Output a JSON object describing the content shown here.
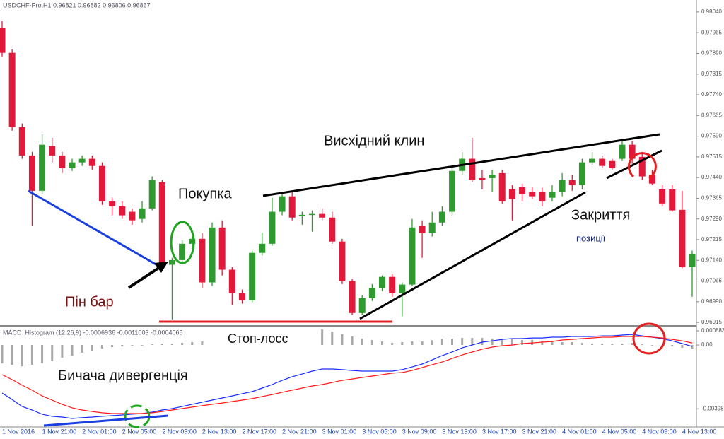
{
  "chart_data": [
    {
      "type": "candlestick",
      "title": "USDCHF-Pro,H1 0.96821 0.96882 0.96806 0.96867",
      "categories": [
        "1 Nov 2016",
        null,
        null,
        null,
        "1 Nov 21:00",
        null,
        null,
        null,
        "2 Nov 01:00",
        null,
        null,
        null,
        "2 Nov 05:00",
        null,
        null,
        null,
        "2 Nov 09:00",
        null,
        null,
        null,
        "2 Nov 13:00",
        null,
        null,
        null,
        "2 Nov 17:00",
        null,
        null,
        null,
        "2 Nov 21:00",
        null,
        null,
        null,
        "3 Nov 01:00",
        null,
        null,
        null,
        "3 Nov 05:00",
        null,
        null,
        null,
        "3 Nov 09:00",
        null,
        null,
        null,
        "3 Nov 13:00",
        null,
        null,
        null,
        "3 Nov 17:00",
        null,
        null,
        null,
        "3 Nov 21:00",
        null,
        null,
        null,
        "4 Nov 01:00",
        null,
        null,
        null,
        "4 Nov 05:00",
        null,
        null,
        null,
        "4 Nov 09:00",
        null,
        null,
        null,
        "4 Nov 13:00",
        null
      ],
      "open": [
        0.97981,
        0.97892,
        0.97623,
        0.9752,
        0.97392,
        0.97554,
        0.9752,
        0.97474,
        0.97495,
        0.97508,
        0.97482,
        0.97354,
        0.97336,
        0.97316,
        0.9729,
        0.97328,
        0.97423,
        0.97124,
        0.97141,
        0.972,
        0.97218,
        0.9706,
        0.97259,
        0.97106,
        0.97021,
        0.96996,
        0.97167,
        0.972,
        0.97316,
        0.97372,
        0.973,
        0.97305,
        0.97308,
        0.97295,
        0.97208,
        0.97065,
        0.96949,
        0.97003,
        0.97039,
        0.9708,
        0.97021,
        0.97052,
        0.97264,
        0.97239,
        0.97277,
        0.97316,
        0.97464,
        0.97508,
        0.97438,
        0.97438,
        0.97456,
        0.97397,
        0.97405,
        0.97387,
        0.97387,
        0.97367,
        0.97387,
        0.97431,
        0.97413,
        0.97495,
        0.97508,
        0.975,
        0.97508,
        0.97559,
        0.97515,
        0.97449,
        0.97397,
        0.97397,
        0.97323,
        0.97116
      ],
      "high": [
        0.98007,
        0.97904,
        0.97636,
        0.97533,
        0.97597,
        0.97584,
        0.97533,
        0.97508,
        0.9752,
        0.9752,
        0.97495,
        0.97367,
        0.97354,
        0.97328,
        0.97354,
        0.97444,
        0.97431,
        0.97149,
        0.97213,
        0.97226,
        0.97239,
        0.97277,
        0.97285,
        0.97116,
        0.97034,
        0.97175,
        0.97239,
        0.97367,
        0.9738,
        0.97387,
        0.97316,
        0.97321,
        0.97328,
        0.97316,
        0.97218,
        0.97072,
        0.97013,
        0.97054,
        0.97085,
        0.9709,
        0.9706,
        0.9729,
        0.97285,
        0.97316,
        0.97336,
        0.97477,
        0.97533,
        0.97584,
        0.97469,
        0.97469,
        0.97469,
        0.97413,
        0.97418,
        0.97405,
        0.97403,
        0.97413,
        0.97456,
        0.97449,
        0.97508,
        0.97533,
        0.9752,
        0.97508,
        0.97572,
        0.97572,
        0.97533,
        0.97469,
        0.97413,
        0.97413,
        0.97392,
        0.97175
      ],
      "low": [
        0.97879,
        0.9761,
        0.97508,
        0.97264,
        0.9738,
        0.97495,
        0.97456,
        0.97464,
        0.97482,
        0.97469,
        0.97341,
        0.97303,
        0.9729,
        0.97269,
        0.97277,
        0.97321,
        0.97111,
        0.96926,
        0.97131,
        0.97188,
        0.97039,
        0.97047,
        0.97085,
        0.96978,
        0.96983,
        0.96988,
        0.97157,
        0.97193,
        0.97303,
        0.97285,
        0.97269,
        0.97244,
        0.97285,
        0.972,
        0.97054,
        0.96942,
        0.96942,
        0.96993,
        0.97029,
        0.97008,
        0.96937,
        0.97047,
        0.97149,
        0.97226,
        0.97264,
        0.97303,
        0.97449,
        0.97423,
        0.97397,
        0.97387,
        0.97346,
        0.97285,
        0.97354,
        0.97362,
        0.97336,
        0.97354,
        0.97372,
        0.97392,
        0.97397,
        0.97487,
        0.97474,
        0.97469,
        0.975,
        0.9749,
        0.97431,
        0.97413,
        0.97336,
        0.97316,
        0.97111,
        0.97008
      ],
      "close": [
        0.97892,
        0.97623,
        0.9752,
        0.97392,
        0.97559,
        0.9752,
        0.97474,
        0.97495,
        0.97508,
        0.97482,
        0.97354,
        0.97336,
        0.97303,
        0.97285,
        0.97328,
        0.97431,
        0.97124,
        0.97141,
        0.972,
        0.97218,
        0.9706,
        0.97259,
        0.97106,
        0.97021,
        0.96996,
        0.97167,
        0.972,
        0.97316,
        0.97372,
        0.97295,
        0.97305,
        0.97308,
        0.97295,
        0.97208,
        0.97065,
        0.96949,
        0.97003,
        0.97039,
        0.9708,
        0.97021,
        0.97052,
        0.97259,
        0.97239,
        0.97277,
        0.97316,
        0.97464,
        0.97508,
        0.97431,
        0.97431,
        0.97449,
        0.97354,
        0.97362,
        0.9738,
        0.97372,
        0.97354,
        0.97387,
        0.97431,
        0.97413,
        0.97495,
        0.97508,
        0.97482,
        0.97474,
        0.97559,
        0.97508,
        0.97444,
        0.97418,
        0.97346,
        0.97321,
        0.97116,
        0.97162
      ],
      "up_color": "#2f9a2f",
      "down_color": "#e2193a",
      "ylim": [
        0.96905,
        0.9805
      ],
      "yticks": [
        {
          "value": 0.9804,
          "label": "0.98040"
        },
        0.97965,
        {
          "value": 0.9789,
          "label": "0.97890"
        },
        0.97815,
        {
          "value": 0.9774,
          "label": "0.97740"
        },
        0.97665,
        {
          "value": 0.9759,
          "label": "0.97590"
        },
        0.97515,
        {
          "value": 0.9744,
          "label": "0.97440"
        },
        0.97365,
        {
          "value": 0.9729,
          "label": "0.97290"
        },
        0.97215,
        {
          "value": 0.9714,
          "label": "0.97140"
        },
        0.97065,
        {
          "value": 0.9699,
          "label": "0.96990"
        },
        0.96915
      ],
      "annotations": [
        "Висхідний клин",
        "Покупка",
        "Пін бар",
        "Закриття",
        "позиції",
        "Стоп-лосс",
        "Бичача дивергенція"
      ]
    },
    {
      "type": "macd",
      "title": "MACD_Histogram (12,26,9) -0.0006936 -0.0011003 -0.0004066",
      "ylim": [
        -0.00503,
        0.00115
      ],
      "yticks": [
        0.000883,
        {
          "value": 0,
          "label": "0.00"
        },
        -0.003983
      ],
      "series": [
        {
          "style": "histogram",
          "color": "#a8a8a8",
          "values": [
            -0.00115,
            -0.00124,
            -0.00133,
            -0.00124,
            -0.00114,
            -0.00101,
            -0.0008,
            -0.00067,
            -0.00048,
            -0.00035,
            -0.00022,
            -0.00013,
            -9e-05,
            -4e-05,
            0,
            4e-05,
            9e-05,
            9e-05,
            0.00013,
            0.00018,
            0.00022,
            0.00026,
            0.00031,
            0.00035,
            0.0004,
            0.00044,
            0.00053,
            0.00062,
            0.00074,
            0.00084,
            0.00088,
            0.00093,
            0.00097,
            0.00084,
            0.00067,
            0.00053,
            0.0004,
            0.00031,
            0.00022,
            0.00013,
            0.00018,
            0.00022,
            0.00022,
            0.0003,
            0.0004,
            0.0004,
            0.00044,
            0.00044,
            0.00044,
            0.00039,
            0.00039,
            0.0004,
            0.00031,
            0.00031,
            0.00026,
            0.00027,
            0.00018,
            0.00018,
            0.00013,
            9e-05,
            8e-05,
            8e-05,
            9e-05,
            0.00013,
            4e-05,
            0,
            -4e-05,
            -9e-05,
            -0.00017,
            -0.00022
          ]
        },
        {
          "style": "line",
          "color": "#1a2cff",
          "values": [
            -0.003,
            -0.0034,
            -0.00384,
            -0.00406,
            -0.00432,
            -0.00445,
            -0.0045,
            -0.00459,
            -0.00454,
            -0.0045,
            -0.00445,
            -0.00441,
            -0.00437,
            -0.00432,
            -0.00428,
            -0.00419,
            -0.00406,
            -0.00397,
            -0.00384,
            -0.0037,
            -0.00357,
            -0.00344,
            -0.00331,
            -0.00318,
            -0.00304,
            -0.00291,
            -0.00269,
            -0.00247,
            -0.00221,
            -0.00198,
            -0.00181,
            -0.00163,
            -0.0015,
            -0.0015,
            -0.00154,
            -0.00159,
            -0.00163,
            -0.00163,
            -0.00163,
            -0.00163,
            -0.00154,
            -0.00137,
            -0.00119,
            -0.00093,
            -0.00066,
            -0.00044,
            -0.00018,
            0,
            0.00018,
            0.00026,
            0.00035,
            0.0004,
            0.0004,
            0.00044,
            0.00044,
            0.00049,
            0.00049,
            0.00053,
            0.00053,
            0.00053,
            0.00057,
            0.00057,
            0.00062,
            0.00066,
            0.00057,
            0.00049,
            0.0004,
            0.00026,
            9e-05,
            -9e-05
          ]
        },
        {
          "style": "line",
          "color": "#ff1a1a",
          "values": [
            -0.00185,
            -0.00216,
            -0.00251,
            -0.00282,
            -0.00318,
            -0.00344,
            -0.0037,
            -0.00392,
            -0.00406,
            -0.00415,
            -0.00423,
            -0.00428,
            -0.00428,
            -0.00428,
            -0.00428,
            -0.00423,
            -0.00415,
            -0.00406,
            -0.00397,
            -0.00388,
            -0.00379,
            -0.0037,
            -0.00362,
            -0.00353,
            -0.00344,
            -0.00335,
            -0.00322,
            -0.00309,
            -0.00295,
            -0.00282,
            -0.00269,
            -0.00256,
            -0.00247,
            -0.00234,
            -0.00221,
            -0.00212,
            -0.00203,
            -0.00194,
            -0.00185,
            -0.00176,
            -0.00172,
            -0.00159,
            -0.00141,
            -0.00123,
            -0.00106,
            -0.00084,
            -0.00062,
            -0.00044,
            -0.00026,
            -0.00013,
            -4e-05,
            0,
            9e-05,
            0.00013,
            0.00018,
            0.00022,
            0.00031,
            0.00035,
            0.0004,
            0.00044,
            0.00049,
            0.00049,
            0.00053,
            0.00053,
            0.00053,
            0.00049,
            0.00044,
            0.00035,
            0.00026,
            0.00013
          ]
        }
      ]
    }
  ]
}
